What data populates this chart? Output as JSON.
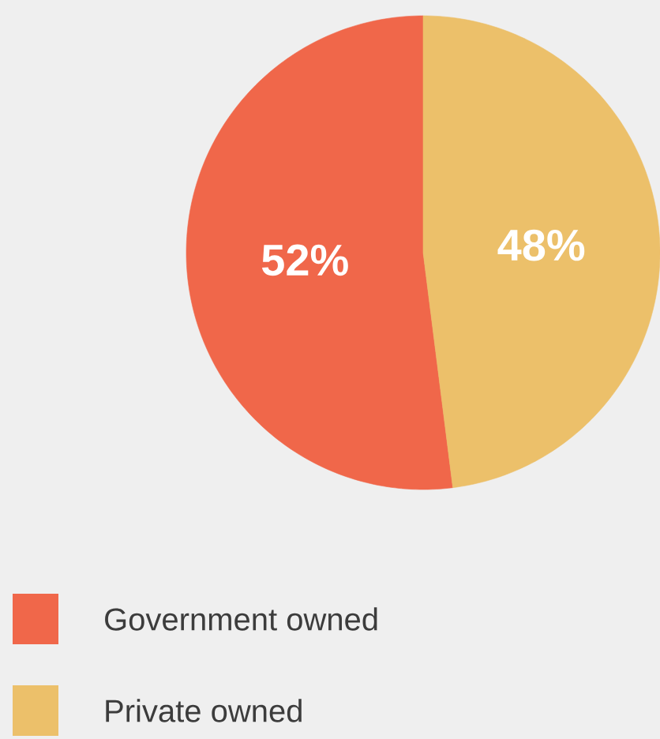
{
  "chart_data": {
    "type": "pie",
    "categories": [
      "Government owned",
      "Private owned"
    ],
    "values": [
      52,
      48
    ],
    "colors": [
      "#f0674a",
      "#ecc06a"
    ],
    "value_labels": [
      "52%",
      "48%"
    ],
    "legend": "bottom"
  }
}
